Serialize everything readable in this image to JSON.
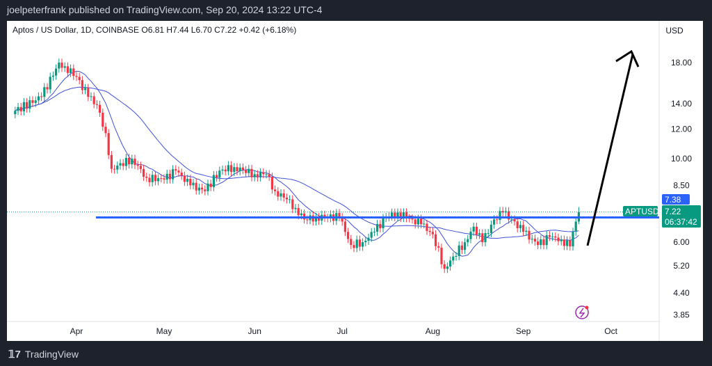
{
  "header": {
    "published": "joelpeterfrank published on TradingView.com, Sep 20, 2024 13:22 UTC-4"
  },
  "legend": {
    "text": "Aptos / US Dollar, 1D, COINBASE  O6.81  H7.44  L6.70  C7.22  +0.42 (+6.18%)"
  },
  "footer": {
    "brand": "TradingView"
  },
  "chart_data": {
    "type": "candlestick",
    "symbol": "APTUSD",
    "currency": "USD",
    "scale": "log",
    "ylim": [
      3.7,
      21
    ],
    "y_ticks": [
      18.0,
      14.0,
      12.0,
      10.0,
      8.5,
      6.0,
      5.2,
      4.4,
      3.85
    ],
    "x_ticks": [
      {
        "label": "Apr",
        "date": "2024-04-01"
      },
      {
        "label": "May",
        "date": "2024-05-01"
      },
      {
        "label": "Jun",
        "date": "2024-06-01"
      },
      {
        "label": "Jul",
        "date": "2024-07-01"
      },
      {
        "label": "Aug",
        "date": "2024-08-01"
      },
      {
        "label": "Sep",
        "date": "2024-09-01"
      },
      {
        "label": "Oct",
        "date": "2024-10-01"
      }
    ],
    "approx_closes": [
      [
        "2024-03-11",
        13.4
      ],
      [
        "2024-03-20",
        14.6
      ],
      [
        "2024-03-26",
        18
      ],
      [
        "2024-03-28",
        17.6
      ],
      [
        "2024-04-01",
        16.5
      ],
      [
        "2024-04-05",
        14.6
      ],
      [
        "2024-04-08",
        13.9
      ],
      [
        "2024-04-11",
        11.7
      ],
      [
        "2024-04-13",
        9.4
      ],
      [
        "2024-04-20",
        10
      ],
      [
        "2024-04-25",
        8.9
      ],
      [
        "2024-05-01",
        8.8
      ],
      [
        "2024-05-05",
        9.3
      ],
      [
        "2024-05-10",
        8.5
      ],
      [
        "2024-05-15",
        8.2
      ],
      [
        "2024-05-20",
        9.3
      ],
      [
        "2024-05-25",
        9.5
      ],
      [
        "2024-06-01",
        9.1
      ],
      [
        "2024-06-05",
        9.1
      ],
      [
        "2024-06-08",
        8.2
      ],
      [
        "2024-06-12",
        7.8
      ],
      [
        "2024-06-15",
        7.4
      ],
      [
        "2024-06-18",
        6.9
      ],
      [
        "2024-06-22",
        7.0
      ],
      [
        "2024-06-30",
        7.0
      ],
      [
        "2024-07-04",
        5.9
      ],
      [
        "2024-07-08",
        6.0
      ],
      [
        "2024-07-12",
        6.4
      ],
      [
        "2024-07-16",
        7.0
      ],
      [
        "2024-07-20",
        7.2
      ],
      [
        "2024-07-25",
        6.9
      ],
      [
        "2024-07-28",
        6.7
      ],
      [
        "2024-08-01",
        6.3
      ],
      [
        "2024-08-05",
        5.1
      ],
      [
        "2024-08-08",
        5.5
      ],
      [
        "2024-08-12",
        6.0
      ],
      [
        "2024-08-15",
        6.6
      ],
      [
        "2024-08-18",
        6.0
      ],
      [
        "2024-08-22",
        6.9
      ],
      [
        "2024-08-25",
        7.2
      ],
      [
        "2024-08-28",
        6.9
      ],
      [
        "2024-09-01",
        6.4
      ],
      [
        "2024-09-06",
        5.9
      ],
      [
        "2024-09-10",
        6.2
      ],
      [
        "2024-09-14",
        6.1
      ],
      [
        "2024-09-17",
        5.85
      ],
      [
        "2024-09-18",
        6.4
      ],
      [
        "2024-09-19",
        6.81
      ],
      [
        "2024-09-20",
        7.22
      ]
    ],
    "last": {
      "open": 6.81,
      "high": 7.44,
      "low": 6.7,
      "close": 7.22,
      "change": "+0.42",
      "change_pct": "+6.18%",
      "countdown": "06:37:42"
    },
    "resistance_level": 7.38,
    "labels": {
      "price": "7.22",
      "level": "7.38",
      "symbol": "APTUSD",
      "countdown": "06:37:42",
      "currency": "USD"
    },
    "colors": {
      "up": "#089981",
      "down": "#f23645",
      "ma": "#3f51d8",
      "level": "#2962ff",
      "label": "#089981"
    }
  }
}
